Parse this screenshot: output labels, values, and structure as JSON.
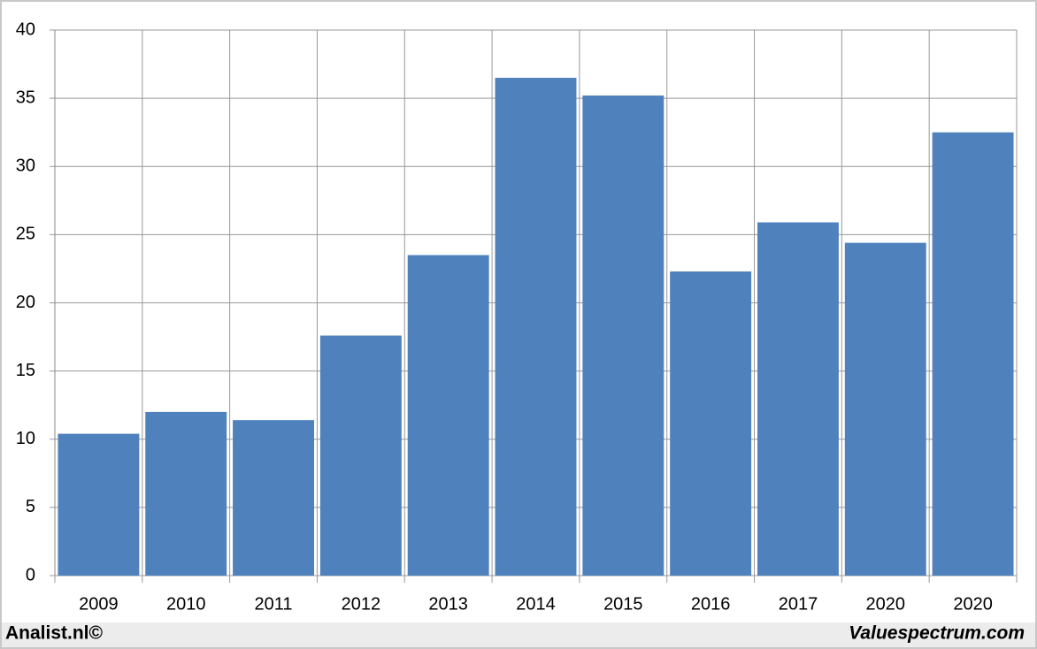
{
  "chart_data": {
    "type": "bar",
    "categories": [
      "2009",
      "2010",
      "2011",
      "2012",
      "2013",
      "2014",
      "2015",
      "2016",
      "2017",
      "2020",
      "2020"
    ],
    "values": [
      10.4,
      12.0,
      11.4,
      17.6,
      23.5,
      36.5,
      35.2,
      22.3,
      25.9,
      24.4,
      32.5
    ],
    "color": "#4f81bd",
    "ylim": [
      0,
      40
    ],
    "yticks": [
      0,
      5,
      10,
      15,
      20,
      25,
      30,
      35,
      40
    ],
    "grid": true,
    "credit_left": "Analist.nl©",
    "credit_right": "Valuespectrum.com"
  }
}
